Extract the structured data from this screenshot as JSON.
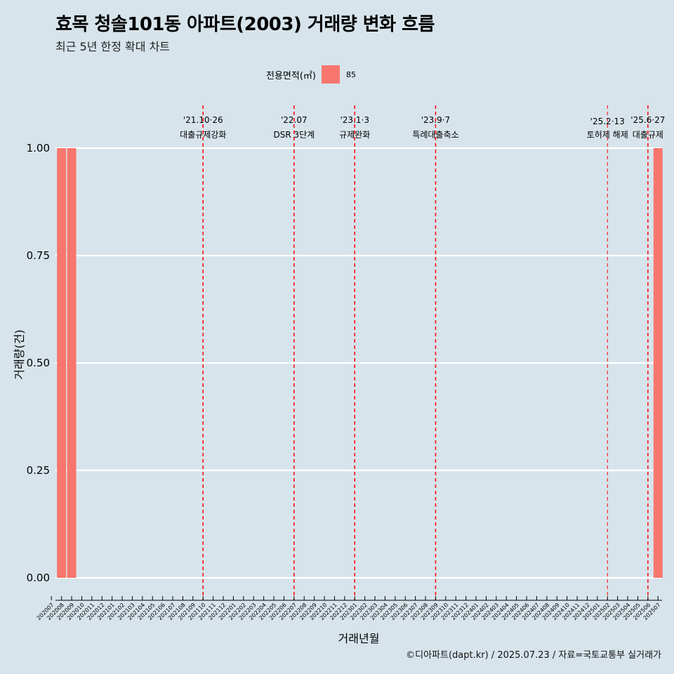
{
  "title": "효목 청솔101동 아파트(2003) 거래량 변화 흐름",
  "subtitle": "최근 5년 한정 확대 차트",
  "caption": "©디아파트(dapt.kr) / 2025.07.23 / 자료=국토교통부 실거래가",
  "legend": {
    "title": "전용면적(㎡)",
    "label": "85"
  },
  "colors": {
    "background": "#d7e4eb",
    "bar": "#f8766d",
    "event_line": "#ff0000",
    "grid": "#ffffff"
  },
  "chart_data": {
    "type": "bar",
    "title": "효목 청솔101동 아파트(2003) 거래량 변화 흐름",
    "subtitle": "최근 5년 한정 확대 차트",
    "xlabel": "거래년월",
    "ylabel": "거래량(건)",
    "ylim": [
      0,
      1
    ],
    "yticks": [
      "0.00",
      "0.25",
      "0.50",
      "0.75",
      "1.00"
    ],
    "categories": [
      "202007",
      "202008",
      "202009",
      "202010",
      "202011",
      "202012",
      "202101",
      "202102",
      "202103",
      "202104",
      "202105",
      "202106",
      "202107",
      "202108",
      "202109",
      "202110",
      "202111",
      "202112",
      "202201",
      "202202",
      "202203",
      "202204",
      "202205",
      "202206",
      "202207",
      "202208",
      "202209",
      "202210",
      "202211",
      "202212",
      "202301",
      "202302",
      "202303",
      "202304",
      "202305",
      "202306",
      "202307",
      "202308",
      "202309",
      "202310",
      "202311",
      "202312",
      "202401",
      "202402",
      "202403",
      "202404",
      "202405",
      "202406",
      "202407",
      "202408",
      "202409",
      "202410",
      "202411",
      "202412",
      "202501",
      "202502",
      "202503",
      "202504",
      "202505",
      "202506",
      "202507"
    ],
    "series": [
      {
        "name": "85",
        "bars": [
          {
            "month": "202008",
            "value": 1
          },
          {
            "month": "202009",
            "value": 1
          },
          {
            "month": "202507",
            "value": 1
          }
        ]
      }
    ],
    "events": [
      {
        "date": "'21.10·26",
        "label": "대출규제강화",
        "month": "202110"
      },
      {
        "date": "'22.07",
        "label": "DSR 3단계",
        "month": "202207"
      },
      {
        "date": "'23.1·3",
        "label": "규제완화",
        "month": "202301"
      },
      {
        "date": "'23.9·7",
        "label": "특례대출축소",
        "month": "202309"
      },
      {
        "date": "'25.2·13",
        "label": "토허제 해제",
        "month": "202502"
      },
      {
        "date": "'25.6·27",
        "label": "대출규제",
        "month": "202506"
      }
    ],
    "grid": true,
    "legend_position": "top"
  }
}
